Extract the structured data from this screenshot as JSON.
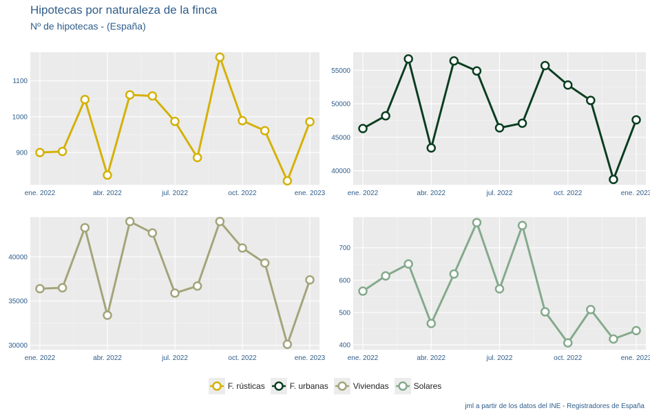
{
  "header": {
    "title": "Hipotecas por naturaleza de la finca",
    "subtitle": "Nº de hipotecas - (España)"
  },
  "caption": "jml a partir de los datos del INE - Registradores de España",
  "colors": {
    "panel_bg": "#ebebeb",
    "grid": "#ffffff",
    "axis_text": "#2e5c8a"
  },
  "chart_data": [
    {
      "type": "line",
      "series_name": "F. rústicas",
      "color": "#d4b106",
      "x": [
        "ene. 2022",
        "feb. 2022",
        "mar. 2022",
        "abr. 2022",
        "may. 2022",
        "jun. 2022",
        "jul. 2022",
        "ago. 2022",
        "sep. 2022",
        "oct. 2022",
        "nov. 2022",
        "dic. 2022",
        "ene. 2023"
      ],
      "values": [
        900,
        903,
        1048,
        837,
        1061,
        1058,
        987,
        886,
        1166,
        989,
        961,
        821,
        986
      ],
      "ylim": [
        810,
        1180
      ],
      "yticks": [
        900,
        1000,
        1100
      ],
      "xtick_labels": [
        "ene. 2022",
        "abr. 2022",
        "jul. 2022",
        "oct. 2022",
        "ene. 2023"
      ],
      "xtick_index": [
        0,
        3,
        6,
        9,
        12
      ]
    },
    {
      "type": "line",
      "series_name": "F. urbanas",
      "color": "#0a3d1f",
      "x": [
        "ene. 2022",
        "feb. 2022",
        "mar. 2022",
        "abr. 2022",
        "may. 2022",
        "jun. 2022",
        "jul. 2022",
        "ago. 2022",
        "sep. 2022",
        "oct. 2022",
        "nov. 2022",
        "dic. 2022",
        "ene. 2023"
      ],
      "values": [
        46300,
        48200,
        56700,
        43400,
        56400,
        54900,
        46400,
        47100,
        55700,
        52800,
        50500,
        38700,
        47600
      ],
      "ylim": [
        37900,
        57700
      ],
      "yticks": [
        40000,
        45000,
        50000,
        55000
      ],
      "xtick_labels": [
        "ene. 2022",
        "abr. 2022",
        "jul. 2022",
        "oct. 2022",
        "ene. 2023"
      ],
      "xtick_index": [
        0,
        3,
        6,
        9,
        12
      ]
    },
    {
      "type": "line",
      "series_name": "Viviendas",
      "color": "#a3a47a",
      "x": [
        "ene. 2022",
        "feb. 2022",
        "mar. 2022",
        "abr. 2022",
        "may. 2022",
        "jun. 2022",
        "jul. 2022",
        "ago. 2022",
        "sep. 2022",
        "oct. 2022",
        "nov. 2022",
        "dic. 2022",
        "ene. 2023"
      ],
      "values": [
        36400,
        36500,
        43300,
        33400,
        44000,
        42700,
        35900,
        36700,
        44000,
        41000,
        39300,
        30100,
        37400
      ],
      "ylim": [
        29500,
        44500
      ],
      "yticks": [
        30000,
        35000,
        40000
      ],
      "xtick_labels": [
        "ene. 2022",
        "abr. 2022",
        "jul. 2022",
        "oct. 2022",
        "ene. 2023"
      ],
      "xtick_index": [
        0,
        3,
        6,
        9,
        12
      ]
    },
    {
      "type": "line",
      "series_name": "Solares",
      "color": "#84a98c",
      "x": [
        "ene. 2022",
        "feb. 2022",
        "mar. 2022",
        "abr. 2022",
        "may. 2022",
        "jun. 2022",
        "jul. 2022",
        "ago. 2022",
        "sep. 2022",
        "oct. 2022",
        "nov. 2022",
        "dic. 2022",
        "ene. 2023"
      ],
      "values": [
        566,
        613,
        650,
        466,
        619,
        778,
        573,
        769,
        502,
        406,
        509,
        418,
        444
      ],
      "ylim": [
        385,
        795
      ],
      "yticks": [
        400,
        500,
        600,
        700
      ],
      "xtick_labels": [
        "ene. 2022",
        "abr. 2022",
        "jul. 2022",
        "oct. 2022",
        "ene. 2023"
      ],
      "xtick_index": [
        0,
        3,
        6,
        9,
        12
      ]
    }
  ],
  "legend": {
    "items": [
      {
        "label": "F. rústicas",
        "color": "#d4b106"
      },
      {
        "label": "F. urbanas",
        "color": "#0a3d1f"
      },
      {
        "label": "Viviendas",
        "color": "#a3a47a"
      },
      {
        "label": "Solares",
        "color": "#84a98c"
      }
    ]
  }
}
